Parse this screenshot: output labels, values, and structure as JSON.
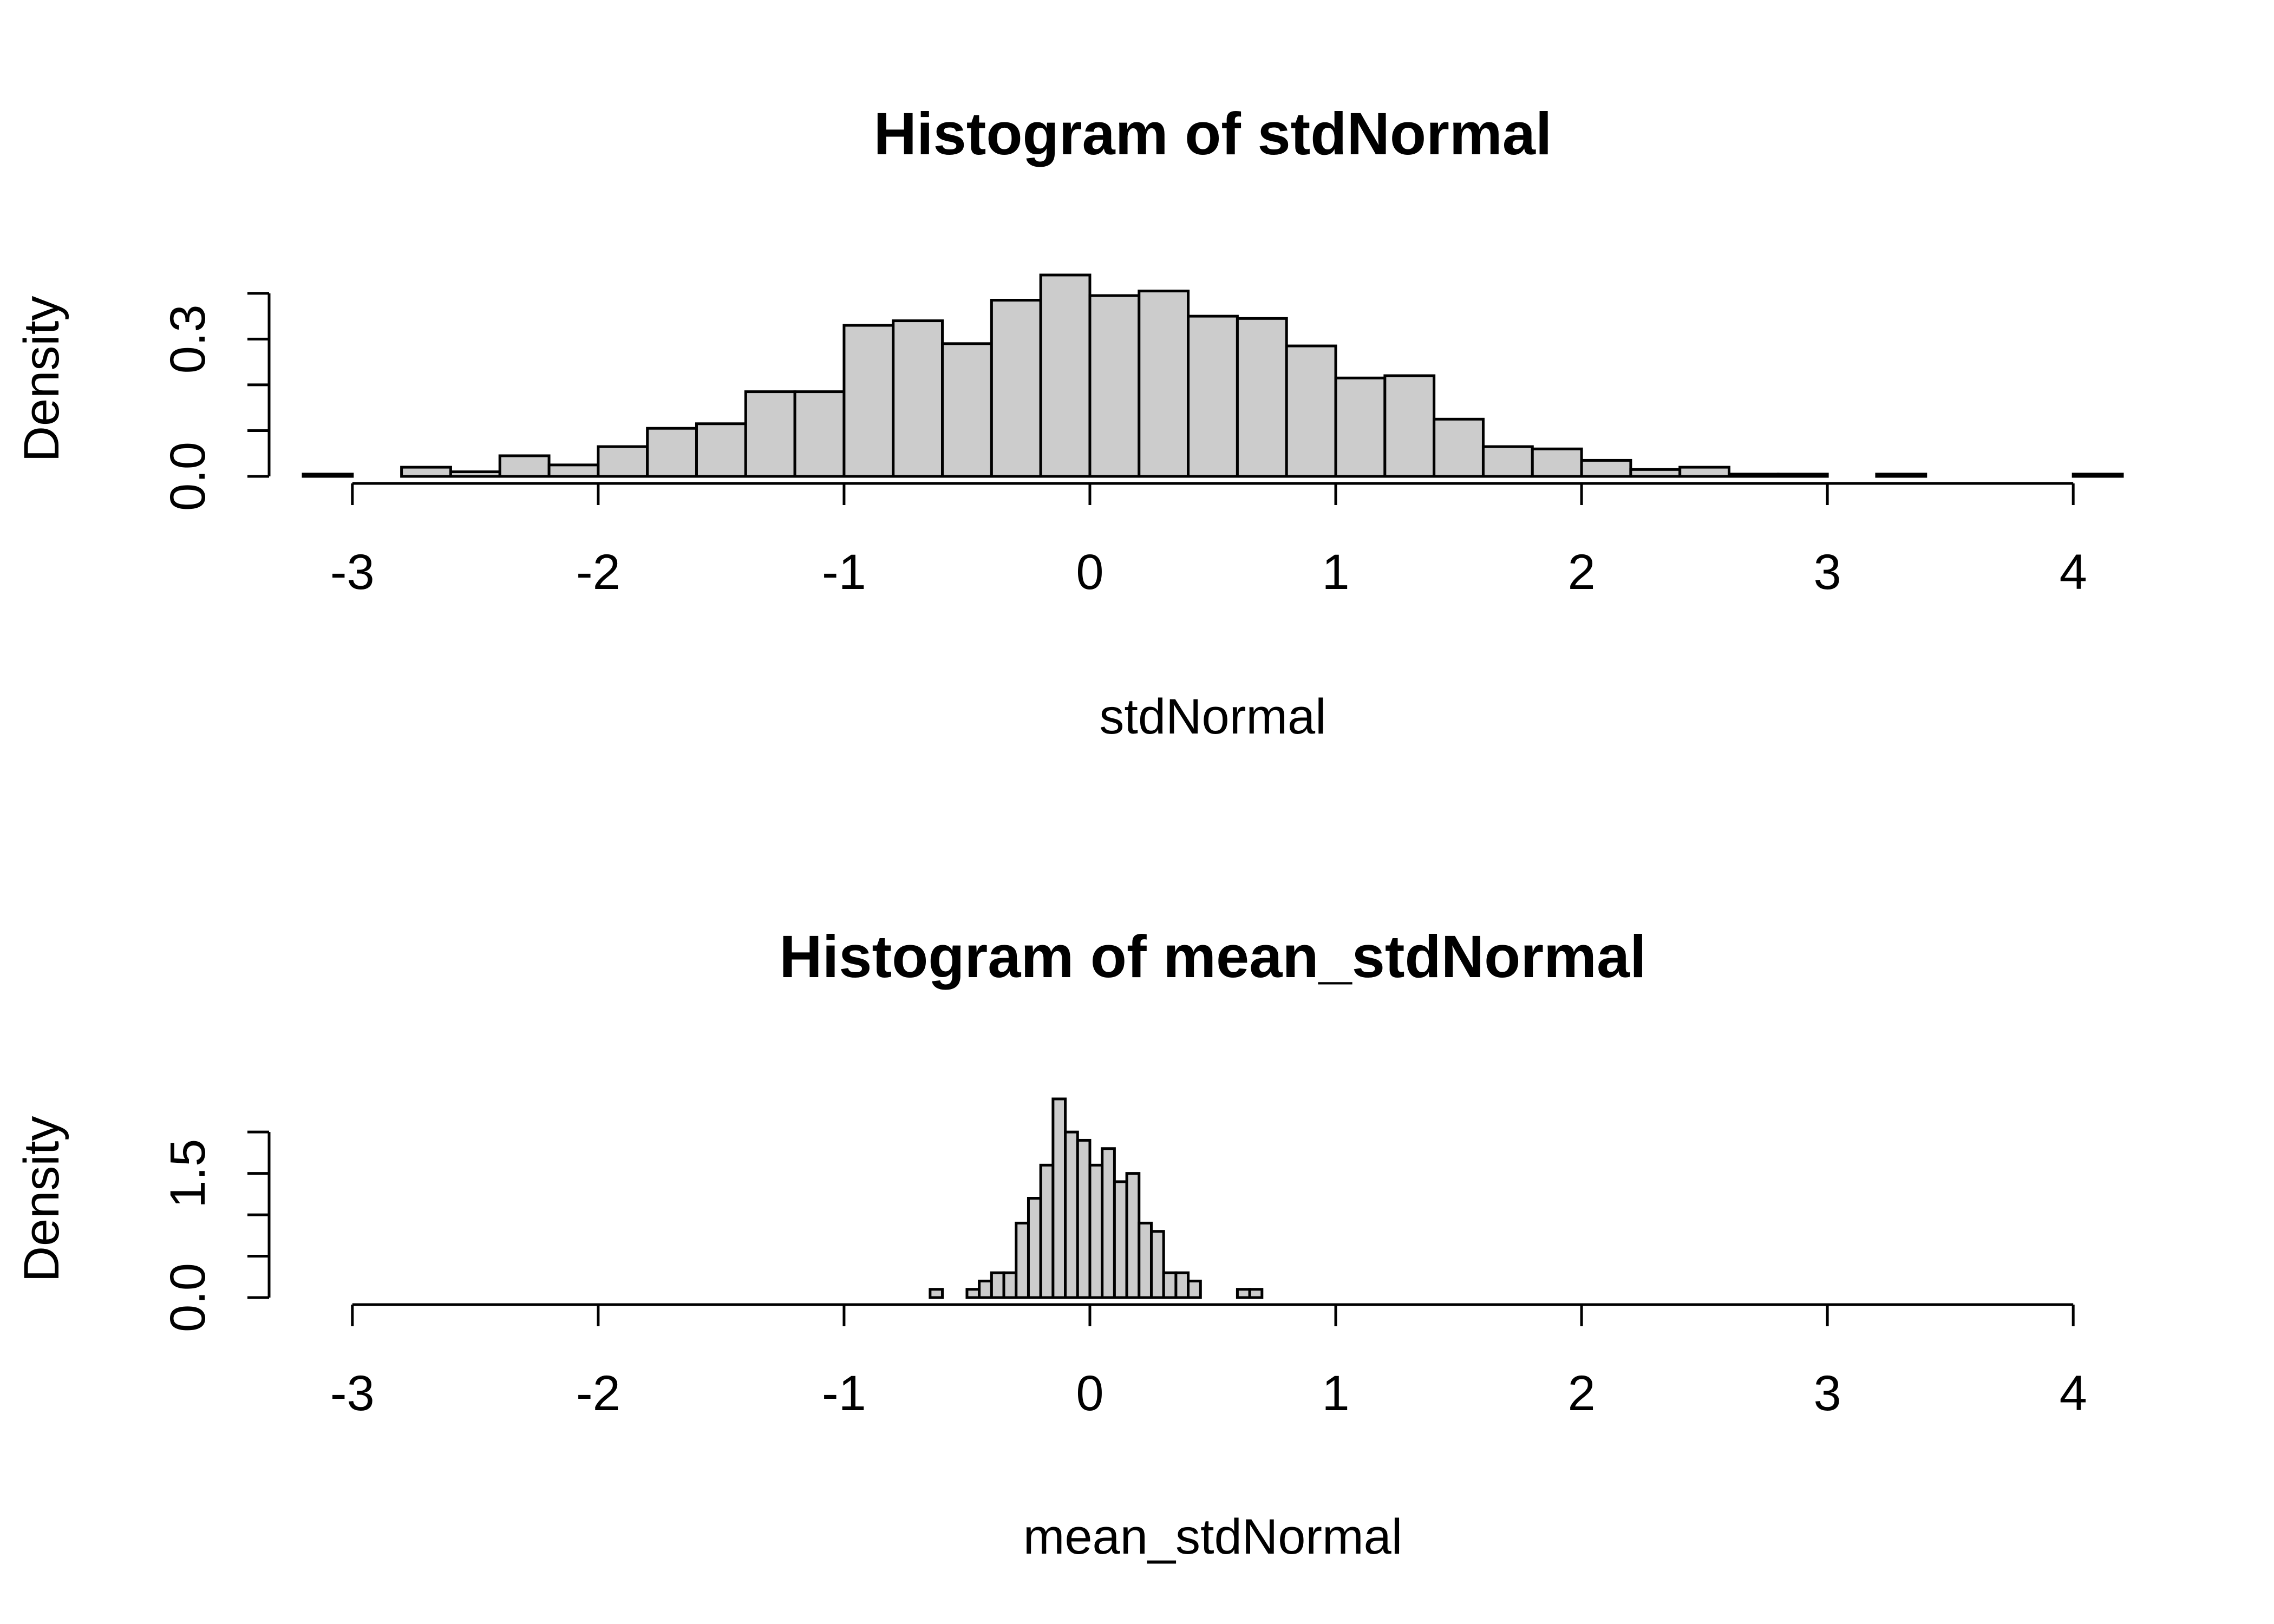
{
  "chart_data": [
    {
      "type": "bar",
      "title": "Histogram of stdNormal",
      "xlabel": "stdNormal",
      "ylabel": "Density",
      "xlim": [
        -3.2,
        4.2
      ],
      "ylim": [
        0,
        0.44
      ],
      "x_ticks": [
        -3,
        -2,
        -1,
        0,
        1,
        2,
        3,
        4
      ],
      "x_tick_labels": [
        "-3",
        "-2",
        "-1",
        "0",
        "1",
        "2",
        "3",
        "4"
      ],
      "y_ticks": [
        0,
        0.1,
        0.2,
        0.3,
        0.4
      ],
      "y_tick_labels": [
        "0.0",
        "",
        "",
        "0.3",
        ""
      ],
      "bin_width": 0.2,
      "bin_starts": [
        -3.2,
        -3.0,
        -2.8,
        -2.6,
        -2.4,
        -2.2,
        -2.0,
        -1.8,
        -1.6,
        -1.4,
        -1.2,
        -1.0,
        -0.8,
        -0.6,
        -0.4,
        -0.2,
        0.0,
        0.2,
        0.4,
        0.6,
        0.8,
        1.0,
        1.2,
        1.4,
        1.6,
        1.8,
        2.0,
        2.2,
        2.4,
        2.6,
        2.8,
        3.0,
        3.2,
        3.4,
        3.6,
        3.8,
        4.0
      ],
      "values": [
        0.005,
        0.0,
        0.02,
        0.01,
        0.045,
        0.025,
        0.065,
        0.105,
        0.115,
        0.185,
        0.185,
        0.33,
        0.34,
        0.29,
        0.385,
        0.44,
        0.395,
        0.405,
        0.35,
        0.345,
        0.285,
        0.215,
        0.22,
        0.125,
        0.065,
        0.06,
        0.035,
        0.015,
        0.02,
        0.005,
        0.005,
        0.0,
        0.005,
        0.0,
        0.0,
        0.0,
        0.005
      ]
    },
    {
      "type": "bar",
      "title": "Histogram of mean_stdNormal",
      "xlabel": "mean_stdNormal",
      "ylabel": "Density",
      "xlim": [
        -3.2,
        4.2
      ],
      "ylim": [
        0,
        2.4
      ],
      "x_ticks": [
        -3,
        -2,
        -1,
        0,
        1,
        2,
        3,
        4
      ],
      "x_tick_labels": [
        "-3",
        "-2",
        "-1",
        "0",
        "1",
        "2",
        "3",
        "4"
      ],
      "y_ticks": [
        0,
        0.5,
        1.0,
        1.5,
        2.0
      ],
      "y_tick_labels": [
        "0.0",
        "",
        "",
        "1.5",
        ""
      ],
      "bin_width": 0.05,
      "bin_starts": [
        -0.65,
        -0.6,
        -0.55,
        -0.5,
        -0.45,
        -0.4,
        -0.35,
        -0.3,
        -0.25,
        -0.2,
        -0.15,
        -0.1,
        -0.05,
        0.0,
        0.05,
        0.1,
        0.15,
        0.2,
        0.25,
        0.3,
        0.35,
        0.4,
        0.45,
        0.5,
        0.55,
        0.6,
        0.65
      ],
      "values": [
        0.1,
        0.0,
        0.0,
        0.1,
        0.2,
        0.3,
        0.3,
        0.9,
        1.2,
        1.6,
        2.4,
        2.0,
        1.9,
        1.6,
        1.8,
        1.4,
        1.5,
        0.9,
        0.8,
        0.3,
        0.3,
        0.2,
        0.0,
        0.0,
        0.0,
        0.1,
        0.1
      ]
    }
  ]
}
